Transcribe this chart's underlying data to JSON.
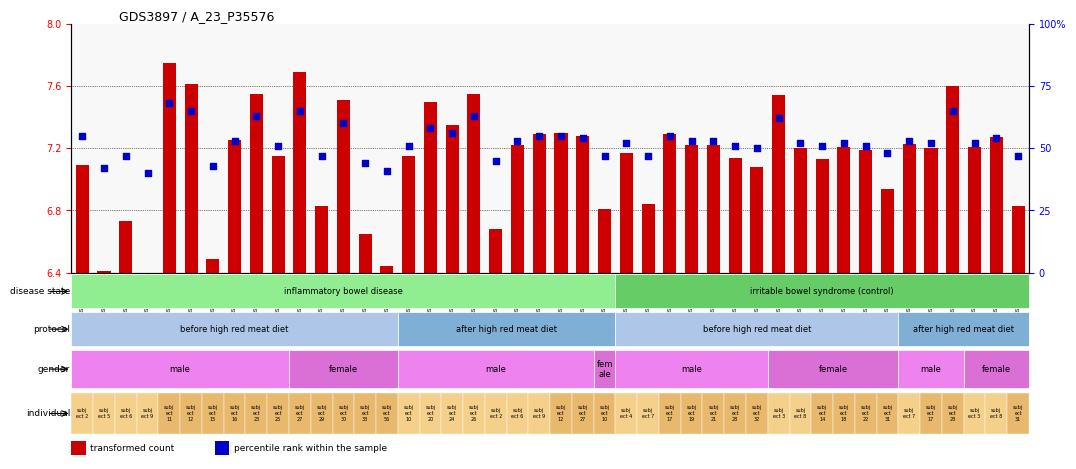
{
  "title": "GDS3897 / A_23_P35576",
  "samples": [
    "GSM620750",
    "GSM620755",
    "GSM620756",
    "GSM620762",
    "GSM620766",
    "GSM620767",
    "GSM620770",
    "GSM620771",
    "GSM620779",
    "GSM620781",
    "GSM620783",
    "GSM620787",
    "GSM620788",
    "GSM620792",
    "GSM620793",
    "GSM620764",
    "GSM620776",
    "GSM620780",
    "GSM620782",
    "GSM620751",
    "GSM620757",
    "GSM620763",
    "GSM620768",
    "GSM620784",
    "GSM620765",
    "GSM620754",
    "GSM620758",
    "GSM620772",
    "GSM620775",
    "GSM620777",
    "GSM620785",
    "GSM620791",
    "GSM620752",
    "GSM620760",
    "GSM620769",
    "GSM620774",
    "GSM620778",
    "GSM620789",
    "GSM620759",
    "GSM620773",
    "GSM620786",
    "GSM620753",
    "GSM620761",
    "GSM620790"
  ],
  "bar_values": [
    7.09,
    6.41,
    6.73,
    6.4,
    7.75,
    7.61,
    6.49,
    7.25,
    7.55,
    7.15,
    7.69,
    6.83,
    7.51,
    6.65,
    6.44,
    7.15,
    7.5,
    7.35,
    7.55,
    6.68,
    7.22,
    7.29,
    7.3,
    7.28,
    6.81,
    7.17,
    6.84,
    7.29,
    7.22,
    7.22,
    7.14,
    7.08,
    7.54,
    7.2,
    7.13,
    7.21,
    7.19,
    6.94,
    7.23,
    7.2,
    7.6,
    7.21,
    7.27,
    6.83
  ],
  "percentile_values": [
    55,
    42,
    47,
    40,
    68,
    65,
    43,
    53,
    63,
    51,
    65,
    47,
    60,
    44,
    41,
    51,
    58,
    56,
    63,
    45,
    53,
    55,
    55,
    54,
    47,
    52,
    47,
    55,
    53,
    53,
    51,
    50,
    62,
    52,
    51,
    52,
    51,
    48,
    53,
    52,
    65,
    52,
    54,
    47
  ],
  "ylim_left": [
    6.4,
    8.0
  ],
  "ylim_right": [
    0,
    100
  ],
  "yticks_left": [
    6.4,
    6.8,
    7.2,
    7.6,
    8.0
  ],
  "yticks_right": [
    0,
    25,
    50,
    75,
    100
  ],
  "bar_color": "#cc0000",
  "dot_color": "#0000cc",
  "background_color": "#ffffff",
  "plot_bg_color": "#f0f0f0",
  "disease_state_row": {
    "label": "disease state",
    "segments": [
      {
        "text": "inflammatory bowel disease",
        "start": 0,
        "end": 25,
        "color": "#90ee90"
      },
      {
        "text": "irritable bowel syndrome (control)",
        "start": 25,
        "end": 44,
        "color": "#66cc66"
      }
    ]
  },
  "protocol_row": {
    "label": "protocol",
    "segments": [
      {
        "text": "before high red meat diet",
        "start": 0,
        "end": 15,
        "color": "#aec6e8"
      },
      {
        "text": "after high red meat diet",
        "start": 15,
        "end": 25,
        "color": "#7fafd4"
      },
      {
        "text": "before high red meat diet",
        "start": 25,
        "end": 38,
        "color": "#aec6e8"
      },
      {
        "text": "after high red meat diet",
        "start": 38,
        "end": 44,
        "color": "#7fafd4"
      }
    ]
  },
  "gender_row": {
    "label": "gender",
    "segments": [
      {
        "text": "male",
        "start": 0,
        "end": 10,
        "color": "#ee82ee"
      },
      {
        "text": "female",
        "start": 10,
        "end": 15,
        "color": "#da70d6"
      },
      {
        "text": "male",
        "start": 15,
        "end": 24,
        "color": "#ee82ee"
      },
      {
        "text": "fem\nale",
        "start": 24,
        "end": 25,
        "color": "#da70d6"
      },
      {
        "text": "male",
        "start": 25,
        "end": 32,
        "color": "#ee82ee"
      },
      {
        "text": "female",
        "start": 32,
        "end": 38,
        "color": "#da70d6"
      },
      {
        "text": "male",
        "start": 38,
        "end": 41,
        "color": "#ee82ee"
      },
      {
        "text": "female",
        "start": 41,
        "end": 44,
        "color": "#da70d6"
      }
    ]
  },
  "individual_labels": [
    "subj\nect 2",
    "subj\nect 5",
    "subj\nect 6",
    "subj\nect 9",
    "subj\nect\n11",
    "subj\nect\n12",
    "subj\nect\n15",
    "subj\nect\n16",
    "subj\nect\n23",
    "subj\nect\n25",
    "subj\nect\n27",
    "subj\nect\n29",
    "subj\nect\n30",
    "subj\nect\n33",
    "subj\nect\n56",
    "subj\nect\n10",
    "subj\nect\n20",
    "subj\nect\n24",
    "subj\nect\n26",
    "subj\nect 2",
    "subj\nect 6",
    "subj\nect 9",
    "subj\nect\n12",
    "subj\nect\n27",
    "subj\nect\n10",
    "subj\nect 4",
    "subj\nect 7",
    "subj\nect\n17",
    "subj\nect\n19",
    "subj\nect\n21",
    "subj\nect\n28",
    "subj\nect\n32",
    "subj\nect 3",
    "subj\nect 8",
    "subj\nect\n14",
    "subj\nect\n18",
    "subj\nect\n22",
    "subj\nect\n31",
    "subj\nect 7",
    "subj\nect\n17",
    "subj\nect\n28",
    "subj\nect 3",
    "subj\nect 8",
    "subj\nect\n31"
  ],
  "individual_colors": [
    "#f5d08a",
    "#f5d08a",
    "#f5d08a",
    "#f5d08a",
    "#e8b86d",
    "#e8b86d",
    "#e8b86d",
    "#e8b86d",
    "#e8b86d",
    "#e8b86d",
    "#e8b86d",
    "#e8b86d",
    "#e8b86d",
    "#e8b86d",
    "#e8b86d",
    "#f5d08a",
    "#f5d08a",
    "#f5d08a",
    "#f5d08a",
    "#f5d08a",
    "#f5d08a",
    "#f5d08a",
    "#e8b86d",
    "#e8b86d",
    "#e8b86d",
    "#f5d08a",
    "#f5d08a",
    "#e8b86d",
    "#e8b86d",
    "#e8b86d",
    "#e8b86d",
    "#e8b86d",
    "#f5d08a",
    "#f5d08a",
    "#e8b86d",
    "#e8b86d",
    "#e8b86d",
    "#e8b86d",
    "#f5d08a",
    "#e8b86d",
    "#e8b86d",
    "#f5d08a",
    "#f5d08a",
    "#e8b86d"
  ]
}
